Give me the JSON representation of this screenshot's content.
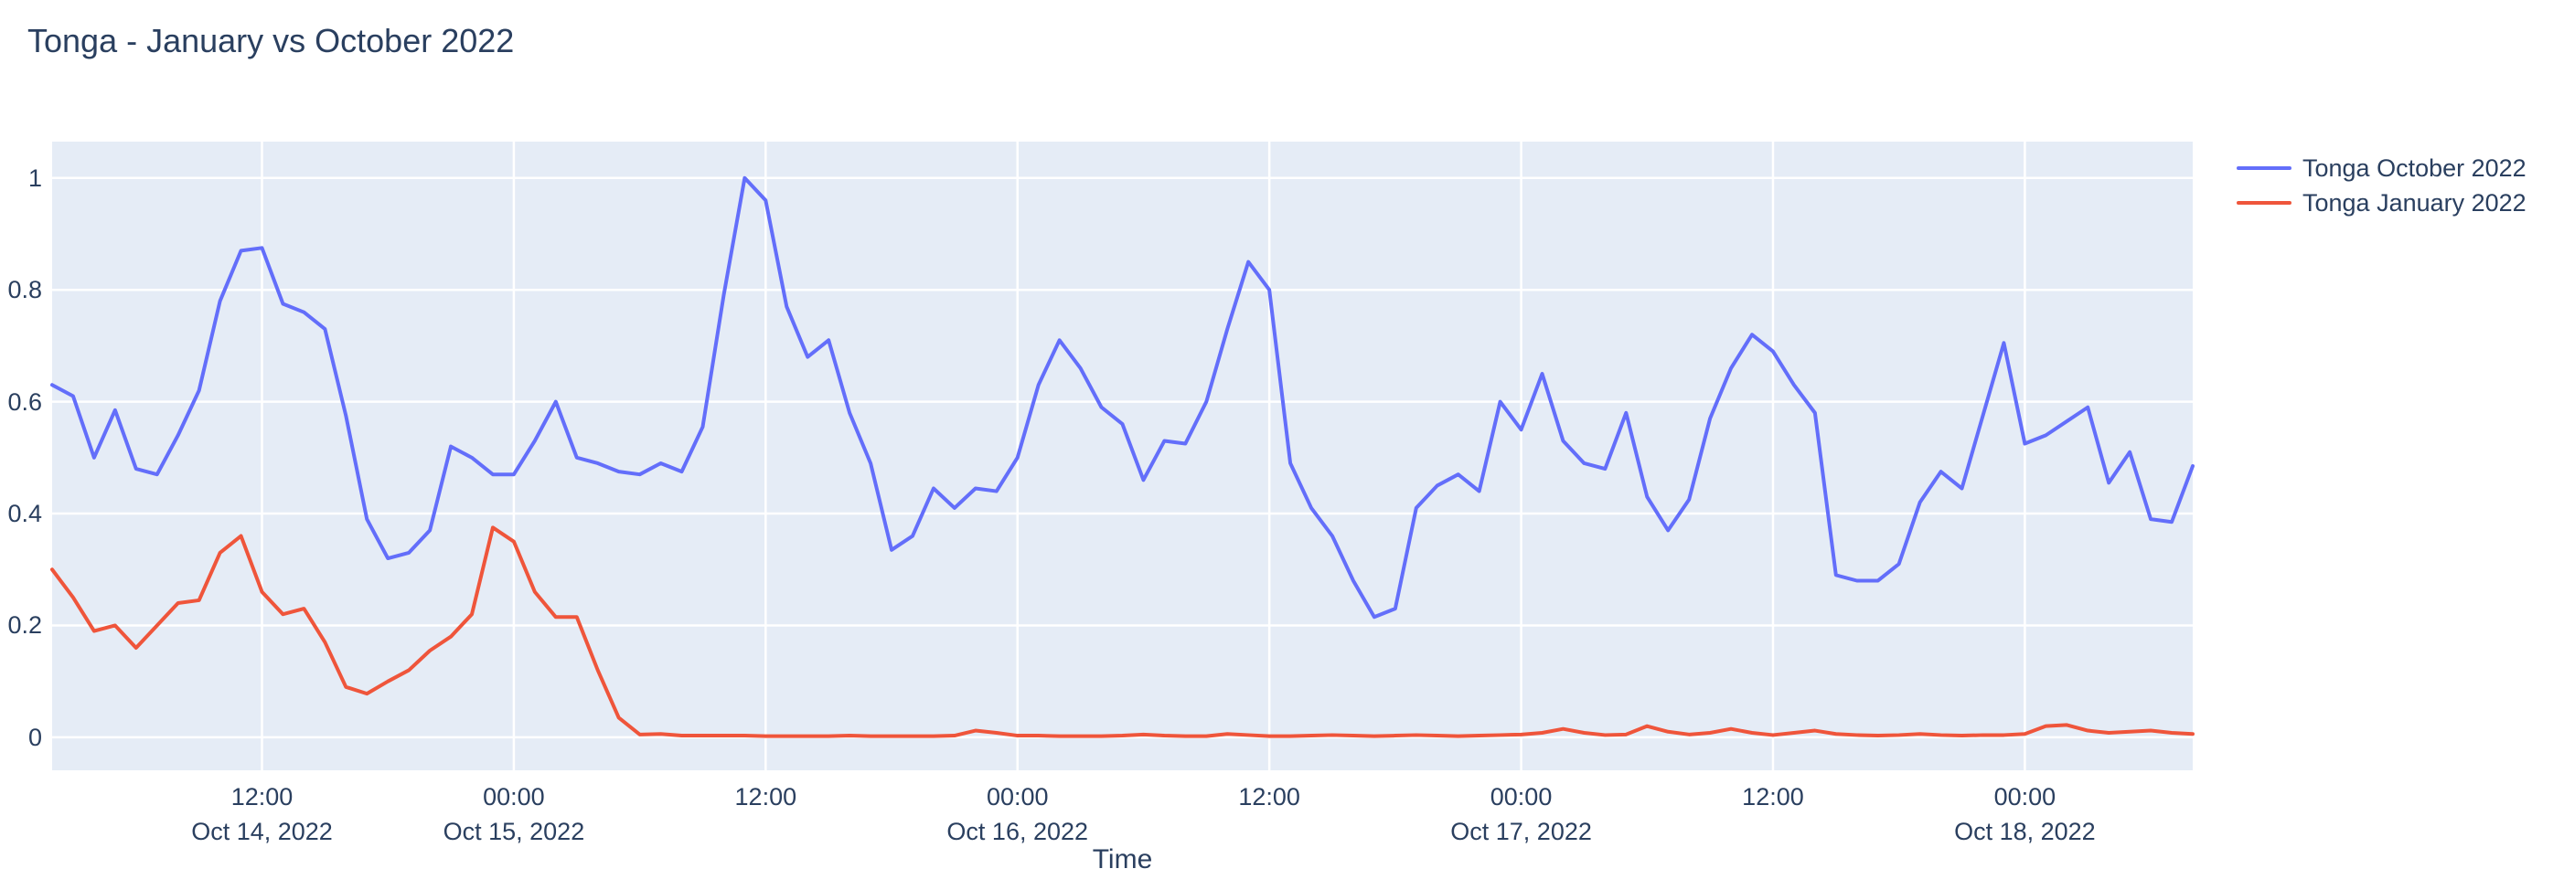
{
  "figure": {
    "title": "Tonga - January vs October 2022",
    "x_axis_title": "Time"
  },
  "colors": {
    "october_series": "#636EFA",
    "january_series": "#EF553B",
    "plot_background": "#E5ECF6",
    "gridline": "#FFFFFF",
    "text": "#2a3f5f",
    "page_background": "#FFFFFF"
  },
  "legend": {
    "position": "top-right",
    "items": [
      {
        "label": "Tonga October 2022",
        "color": "#636EFA"
      },
      {
        "label": "Tonga January 2022",
        "color": "#EF553B"
      }
    ]
  },
  "chart_data": {
    "type": "line",
    "title": "Tonga - January vs October 2022",
    "xlabel": "Time",
    "ylabel": "",
    "grid": true,
    "legend_position": "top-right",
    "x_start": "2022-10-14 02:00",
    "x_end": "2022-10-18 08:00",
    "x_step_hours": 1,
    "x_axis_note": "hours are offsets since 2022-10-14 00:00",
    "xlim_hours": [
      2,
      104
    ],
    "ylim": [
      -0.059,
      1.065
    ],
    "y_ticks": [
      0,
      0.2,
      0.4,
      0.6,
      0.8,
      1
    ],
    "x_ticks": [
      {
        "hour": 12,
        "time": "12:00",
        "date": "Oct 14, 2022"
      },
      {
        "hour": 24,
        "time": "00:00",
        "date": "Oct 15, 2022"
      },
      {
        "hour": 36,
        "time": "12:00",
        "date": ""
      },
      {
        "hour": 48,
        "time": "00:00",
        "date": "Oct 16, 2022"
      },
      {
        "hour": 60,
        "time": "12:00",
        "date": ""
      },
      {
        "hour": 72,
        "time": "00:00",
        "date": "Oct 17, 2022"
      },
      {
        "hour": 84,
        "time": "12:00",
        "date": ""
      },
      {
        "hour": 96,
        "time": "00:00",
        "date": "Oct 18, 2022"
      }
    ],
    "series": [
      {
        "name": "Tonga October 2022",
        "color": "#636EFA",
        "start_hour": 2,
        "values": [
          0.63,
          0.61,
          0.5,
          0.585,
          0.48,
          0.47,
          0.54,
          0.62,
          0.78,
          0.87,
          0.875,
          0.775,
          0.76,
          0.73,
          0.575,
          0.39,
          0.32,
          0.33,
          0.37,
          0.52,
          0.5,
          0.47,
          0.47,
          0.53,
          0.6,
          0.5,
          0.49,
          0.475,
          0.47,
          0.49,
          0.475,
          0.555,
          0.79,
          1.0,
          0.96,
          0.77,
          0.68,
          0.71,
          0.58,
          0.49,
          0.335,
          0.36,
          0.445,
          0.41,
          0.445,
          0.44,
          0.5,
          0.63,
          0.71,
          0.66,
          0.59,
          0.56,
          0.46,
          0.53,
          0.525,
          0.6,
          0.73,
          0.85,
          0.8,
          0.49,
          0.41,
          0.36,
          0.28,
          0.215,
          0.23,
          0.41,
          0.45,
          0.47,
          0.44,
          0.6,
          0.55,
          0.65,
          0.53,
          0.49,
          0.48,
          0.58,
          0.43,
          0.37,
          0.425,
          0.57,
          0.66,
          0.72,
          0.69,
          0.63,
          0.58,
          0.29,
          0.28,
          0.28,
          0.31,
          0.42,
          0.475,
          0.445,
          0.575,
          0.705,
          0.525,
          0.54,
          0.565,
          0.59,
          0.455,
          0.51,
          0.39,
          0.385,
          0.485
        ]
      },
      {
        "name": "Tonga January 2022",
        "color": "#EF553B",
        "start_hour": 2,
        "values": [
          0.3,
          0.25,
          0.19,
          0.2,
          0.16,
          0.2,
          0.24,
          0.245,
          0.33,
          0.36,
          0.26,
          0.22,
          0.23,
          0.17,
          0.09,
          0.078,
          0.1,
          0.12,
          0.155,
          0.18,
          0.22,
          0.375,
          0.35,
          0.26,
          0.215,
          0.215,
          0.12,
          0.035,
          0.005,
          0.006,
          0.003,
          0.003,
          0.003,
          0.003,
          0.002,
          0.002,
          0.002,
          0.002,
          0.003,
          0.002,
          0.002,
          0.002,
          0.002,
          0.003,
          0.012,
          0.008,
          0.003,
          0.003,
          0.002,
          0.002,
          0.002,
          0.003,
          0.005,
          0.003,
          0.002,
          0.002,
          0.006,
          0.004,
          0.002,
          0.002,
          0.003,
          0.004,
          0.003,
          0.002,
          0.003,
          0.004,
          0.003,
          0.002,
          0.003,
          0.004,
          0.005,
          0.008,
          0.015,
          0.008,
          0.004,
          0.005,
          0.02,
          0.01,
          0.005,
          0.008,
          0.015,
          0.008,
          0.004,
          0.008,
          0.012,
          0.006,
          0.004,
          0.003,
          0.004,
          0.006,
          0.004,
          0.003,
          0.004,
          0.004,
          0.006,
          0.02,
          0.022,
          0.012,
          0.008,
          0.01,
          0.012,
          0.008,
          0.006
        ]
      }
    ]
  }
}
